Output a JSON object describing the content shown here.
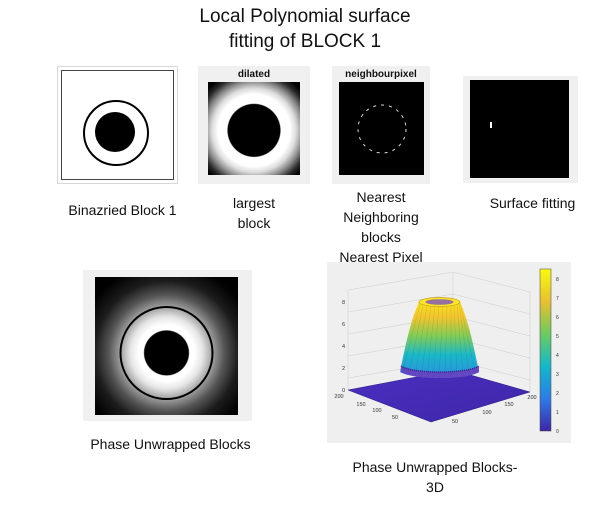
{
  "title_line1": "Local Polynomial surface",
  "title_line2": "fitting of BLOCK 1",
  "panels": {
    "binarized": {
      "caption": "Binazried  Block 1"
    },
    "dilated": {
      "label": "dilated",
      "caption_line1": "largest",
      "caption_line2": "block"
    },
    "neighbour": {
      "label": "neighbourpixel",
      "caption_line1": "Nearest",
      "caption_line2": "Neighboring",
      "caption_line3": "blocks",
      "caption_line4": "Nearest  Pixel"
    },
    "surface": {
      "caption": "Surface fitting"
    },
    "phase": {
      "caption": "Phase Unwrapped Blocks"
    },
    "phase3d": {
      "caption_line1": "Phase Unwrapped Blocks-",
      "caption_line2": "3D"
    }
  },
  "plot3d": {
    "z_ticks": [
      "0",
      "2",
      "4",
      "6",
      "8"
    ],
    "x_ticks": [
      "50",
      "100",
      "150",
      "200"
    ],
    "y_ticks": [
      "50",
      "100",
      "150",
      "200"
    ],
    "colorbar_ticks": [
      "0",
      "1",
      "2",
      "3",
      "4",
      "5",
      "6",
      "7",
      "8"
    ],
    "colormap": [
      "#3e26a8",
      "#2c7ce7",
      "#13b9c9",
      "#6dcb5f",
      "#e8c02f",
      "#f9fb0e"
    ]
  }
}
